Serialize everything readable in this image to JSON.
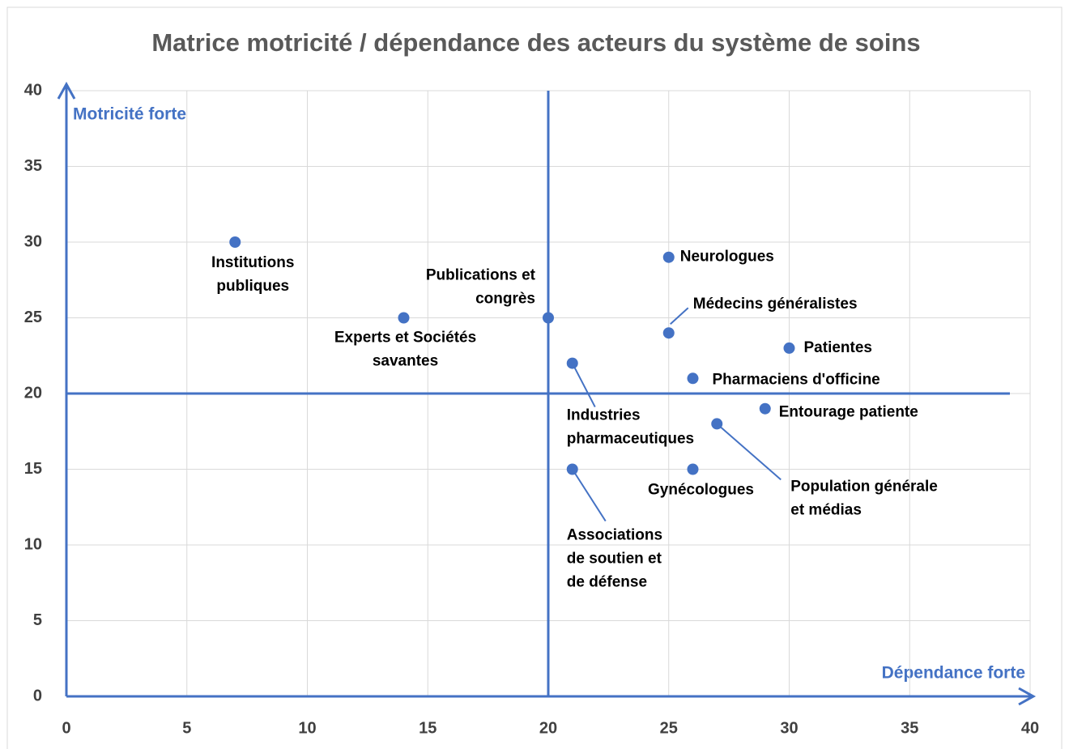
{
  "chart_data": {
    "type": "scatter",
    "title": "Matrice motricité / dépendance des acteurs du système de soins",
    "y_axis_label": "Motricité forte",
    "x_axis_label": "Dépendance forte",
    "xlim": [
      0,
      40
    ],
    "xticks": [
      0,
      5,
      10,
      15,
      20,
      25,
      30,
      35,
      40
    ],
    "ylim": [
      0,
      40
    ],
    "yticks": [
      0,
      5,
      10,
      15,
      20,
      25,
      30,
      35,
      40
    ],
    "grid": true,
    "color": "#4472c4",
    "reference_x": 20,
    "reference_y": 20,
    "x": [
      7,
      14,
      20,
      21,
      25,
      25,
      30,
      26,
      29,
      27,
      26,
      21
    ],
    "y": [
      30,
      25,
      25,
      22,
      29,
      24,
      23,
      21,
      19,
      18,
      15,
      15
    ],
    "labels": [
      [
        "Institutions",
        "publiques"
      ],
      [
        "Experts et Sociétés",
        "savantes"
      ],
      [
        "Publications et",
        "congrès"
      ],
      [
        "Industries",
        "pharmaceutiques"
      ],
      [
        "Neurologues"
      ],
      [
        "Médecins généralistes"
      ],
      [
        "Patientes"
      ],
      [
        "Pharmaciens d'officine"
      ],
      [
        "Entourage patiente"
      ],
      [
        "Population générale",
        "et médias"
      ],
      [
        "Gynécologues"
      ],
      [
        "Associations",
        "de soutien et",
        "de défense"
      ]
    ]
  }
}
